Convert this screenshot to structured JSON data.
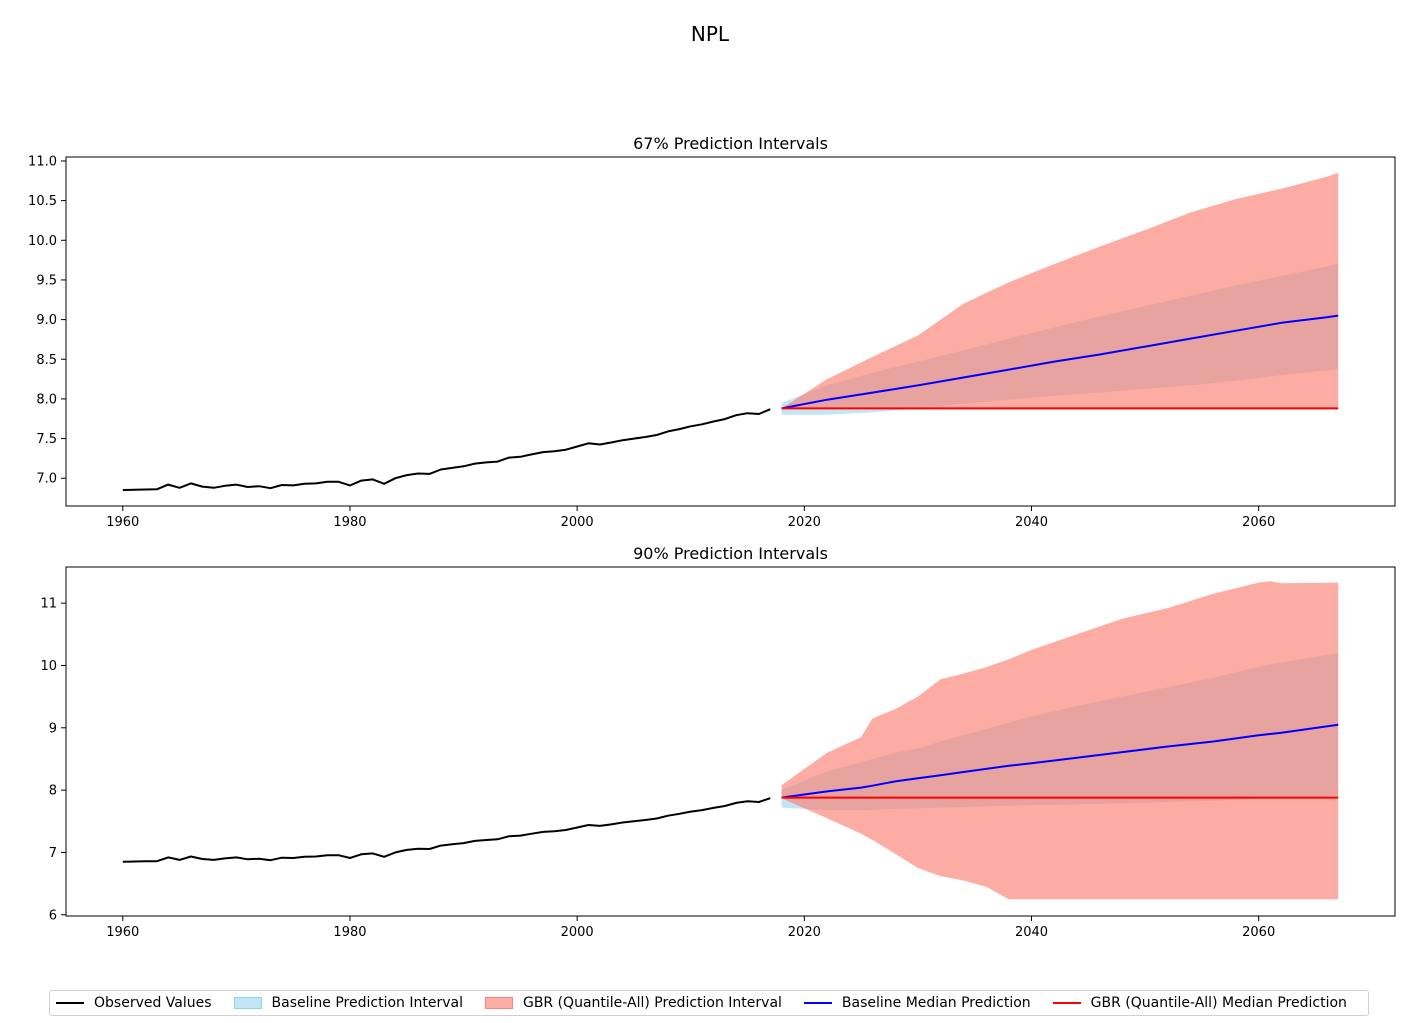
{
  "figure": {
    "suptitle": "NPL"
  },
  "colors": {
    "observed": "#000000",
    "baseline_interval": "#87CEEB",
    "gbr_interval": "#FA8072",
    "baseline_median": "#0000FF",
    "gbr_median": "#FF0000"
  },
  "legend": {
    "observed": "Observed Values",
    "baseline_interval": "Baseline Prediction Interval",
    "gbr_interval": "GBR (Quantile-All) Prediction Interval",
    "baseline_median": "Baseline Median Prediction",
    "gbr_median": "GBR (Quantile-All) Median Prediction"
  },
  "chart_data": [
    {
      "type": "line",
      "title": "67% Prediction Intervals",
      "xlim": [
        1955,
        2072
      ],
      "ylim": [
        6.65,
        11.05
      ],
      "xticks": [
        1960,
        1980,
        2000,
        2020,
        2040,
        2060
      ],
      "yticks": [
        7.0,
        7.5,
        8.0,
        8.5,
        9.0,
        9.5,
        10.0,
        10.5,
        11.0
      ],
      "ytick_decimals": 1,
      "observed": {
        "x": [
          1960,
          1961,
          1962,
          1963,
          1964,
          1965,
          1966,
          1967,
          1968,
          1969,
          1970,
          1971,
          1972,
          1973,
          1974,
          1975,
          1976,
          1977,
          1978,
          1979,
          1980,
          1981,
          1982,
          1983,
          1984,
          1985,
          1986,
          1987,
          1988,
          1989,
          1990,
          1991,
          1992,
          1993,
          1994,
          1995,
          1996,
          1997,
          1998,
          1999,
          2000,
          2001,
          2002,
          2003,
          2004,
          2005,
          2006,
          2007,
          2008,
          2009,
          2010,
          2011,
          2012,
          2013,
          2014,
          2015,
          2016,
          2017
        ],
        "y": [
          6.85,
          6.855,
          6.858,
          6.86,
          6.92,
          6.88,
          6.935,
          6.895,
          6.88,
          6.905,
          6.92,
          6.89,
          6.9,
          6.875,
          6.915,
          6.91,
          6.93,
          6.935,
          6.955,
          6.955,
          6.91,
          6.97,
          6.985,
          6.93,
          7.0,
          7.04,
          7.06,
          7.055,
          7.11,
          7.13,
          7.15,
          7.185,
          7.2,
          7.21,
          7.26,
          7.27,
          7.3,
          7.33,
          7.34,
          7.36,
          7.4,
          7.44,
          7.425,
          7.45,
          7.48,
          7.5,
          7.52,
          7.545,
          7.59,
          7.62,
          7.655,
          7.68,
          7.715,
          7.745,
          7.795,
          7.82,
          7.81,
          7.87
        ]
      },
      "forecast_x": [
        2018,
        2022,
        2026,
        2030,
        2034,
        2038,
        2042,
        2046,
        2050,
        2054,
        2058,
        2062,
        2066,
        2067
      ],
      "gbr_lower": [
        7.87,
        7.87,
        7.87,
        7.87,
        7.87,
        7.87,
        7.87,
        7.87,
        7.87,
        7.87,
        7.87,
        7.87,
        7.87,
        7.87
      ],
      "gbr_upper": [
        7.88,
        8.25,
        8.53,
        8.8,
        9.2,
        9.47,
        9.7,
        9.92,
        10.13,
        10.35,
        10.52,
        10.65,
        10.8,
        10.85
      ],
      "baseline_lower": [
        7.8,
        7.8,
        7.83,
        7.88,
        7.94,
        7.99,
        8.04,
        8.08,
        8.13,
        8.17,
        8.23,
        8.3,
        8.36,
        8.38
      ],
      "baseline_upper": [
        7.95,
        8.17,
        8.33,
        8.47,
        8.61,
        8.76,
        8.9,
        9.04,
        9.17,
        9.3,
        9.43,
        9.55,
        9.67,
        9.7
      ],
      "baseline_median": [
        7.88,
        7.99,
        8.08,
        8.17,
        8.27,
        8.37,
        8.47,
        8.56,
        8.66,
        8.76,
        8.86,
        8.96,
        9.03,
        9.05
      ],
      "gbr_median": [
        7.88,
        7.88,
        7.88,
        7.88,
        7.88,
        7.88,
        7.88,
        7.88,
        7.88,
        7.88,
        7.88,
        7.88,
        7.88,
        7.88
      ]
    },
    {
      "type": "line",
      "title": "90% Prediction Intervals",
      "xlim": [
        1955,
        2072
      ],
      "ylim": [
        5.98,
        11.58
      ],
      "xticks": [
        1960,
        1980,
        2000,
        2020,
        2040,
        2060
      ],
      "yticks": [
        6,
        7,
        8,
        9,
        10,
        11
      ],
      "ytick_decimals": 0,
      "observed": {
        "x": [
          1960,
          1961,
          1962,
          1963,
          1964,
          1965,
          1966,
          1967,
          1968,
          1969,
          1970,
          1971,
          1972,
          1973,
          1974,
          1975,
          1976,
          1977,
          1978,
          1979,
          1980,
          1981,
          1982,
          1983,
          1984,
          1985,
          1986,
          1987,
          1988,
          1989,
          1990,
          1991,
          1992,
          1993,
          1994,
          1995,
          1996,
          1997,
          1998,
          1999,
          2000,
          2001,
          2002,
          2003,
          2004,
          2005,
          2006,
          2007,
          2008,
          2009,
          2010,
          2011,
          2012,
          2013,
          2014,
          2015,
          2016,
          2017
        ],
        "y": [
          6.85,
          6.855,
          6.858,
          6.86,
          6.92,
          6.88,
          6.935,
          6.895,
          6.88,
          6.905,
          6.92,
          6.89,
          6.9,
          6.875,
          6.915,
          6.91,
          6.93,
          6.935,
          6.955,
          6.955,
          6.91,
          6.97,
          6.985,
          6.93,
          7.0,
          7.04,
          7.06,
          7.055,
          7.11,
          7.13,
          7.15,
          7.185,
          7.2,
          7.21,
          7.26,
          7.27,
          7.3,
          7.33,
          7.34,
          7.36,
          7.4,
          7.44,
          7.425,
          7.45,
          7.48,
          7.5,
          7.52,
          7.545,
          7.59,
          7.62,
          7.655,
          7.68,
          7.715,
          7.745,
          7.795,
          7.82,
          7.81,
          7.87
        ]
      },
      "forecast_x": [
        2018,
        2022,
        2025,
        2026,
        2028,
        2030,
        2032,
        2034,
        2036,
        2038,
        2040,
        2044,
        2048,
        2052,
        2056,
        2060,
        2061,
        2062,
        2067
      ],
      "gbr_lower": [
        7.87,
        7.55,
        7.3,
        7.2,
        6.98,
        6.75,
        6.62,
        6.55,
        6.45,
        6.25,
        6.25,
        6.25,
        6.25,
        6.25,
        6.25,
        6.25,
        6.25,
        6.25,
        6.25
      ],
      "gbr_upper": [
        8.08,
        8.6,
        8.85,
        9.15,
        9.3,
        9.5,
        9.78,
        9.87,
        9.97,
        10.1,
        10.25,
        10.5,
        10.75,
        10.92,
        11.15,
        11.33,
        11.35,
        11.32,
        11.33
      ],
      "baseline_lower": [
        7.72,
        7.68,
        7.68,
        7.68,
        7.7,
        7.71,
        7.72,
        7.73,
        7.74,
        7.75,
        7.76,
        7.77,
        7.79,
        7.81,
        7.83,
        7.86,
        7.87,
        7.88,
        7.9
      ],
      "baseline_upper": [
        8.0,
        8.3,
        8.45,
        8.5,
        8.6,
        8.67,
        8.78,
        8.88,
        8.98,
        9.08,
        9.18,
        9.35,
        9.5,
        9.65,
        9.8,
        9.98,
        10.02,
        10.05,
        10.2
      ],
      "baseline_median": [
        7.88,
        7.98,
        8.04,
        8.07,
        8.14,
        8.19,
        8.24,
        8.29,
        8.34,
        8.39,
        8.43,
        8.52,
        8.61,
        8.7,
        8.78,
        8.88,
        8.9,
        8.92,
        9.05
      ],
      "gbr_median": [
        7.88,
        7.88,
        7.88,
        7.88,
        7.88,
        7.88,
        7.88,
        7.88,
        7.88,
        7.88,
        7.88,
        7.88,
        7.88,
        7.88,
        7.88,
        7.88,
        7.88,
        7.88,
        7.88
      ]
    }
  ]
}
